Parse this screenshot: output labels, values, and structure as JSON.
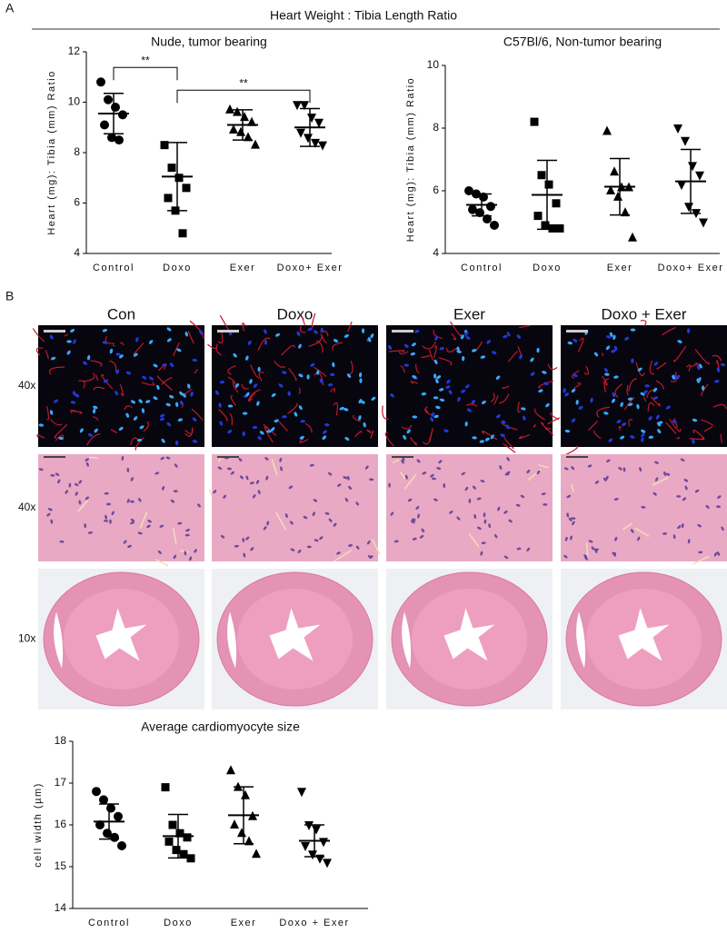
{
  "figure": {
    "panel_labels": [
      "A",
      "B"
    ],
    "header": "Heart Weight : Tibia Length Ratio",
    "image_columns": [
      "Con",
      "Doxo",
      "Exer",
      "Doxo + Exer"
    ],
    "image_rows": [
      "40x",
      "40x",
      "10x"
    ]
  },
  "chart_data": [
    {
      "type": "dot",
      "title": "Nude, tumor bearing",
      "y_label": "Heart (mg): Tibia (mm) Ratio",
      "categories": [
        "Control",
        "Doxo",
        "Exer",
        "Doxo+ Exer"
      ],
      "markers": [
        "circle",
        "square",
        "triangle",
        "triangle-down"
      ],
      "color": "#000000",
      "points": [
        [
          10.8,
          10.1,
          9.8,
          9.5,
          9.1,
          8.6,
          8.5
        ],
        [
          8.3,
          7.4,
          7.0,
          6.6,
          6.2,
          5.7,
          4.8
        ],
        [
          9.7,
          9.6,
          9.4,
          9.2,
          8.9,
          8.8,
          8.6,
          8.3
        ],
        [
          9.9,
          9.9,
          9.4,
          9.2,
          8.8,
          8.6,
          8.4,
          8.3
        ]
      ],
      "means": [
        9.55,
        7.05,
        9.1,
        9.0
      ],
      "sd": [
        0.8,
        1.35,
        0.6,
        0.75
      ],
      "ylim": [
        4,
        12
      ],
      "yticks": [
        4,
        6,
        8,
        10,
        12
      ],
      "annotations": [
        {
          "label": "**",
          "between": [
            "Control",
            "Doxo"
          ]
        },
        {
          "label": "**",
          "between": [
            "Doxo",
            "Doxo+ Exer"
          ]
        }
      ]
    },
    {
      "type": "dot",
      "title": "C57Bl/6, Non-tumor bearing",
      "y_label": "Heart (mg): Tibia (mm) Ratio",
      "categories": [
        "Control",
        "Doxo",
        "Exer",
        "Doxo+ Exer"
      ],
      "markers": [
        "circle",
        "square",
        "triangle",
        "triangle-down"
      ],
      "color": "#000000",
      "points": [
        [
          6.0,
          5.9,
          5.8,
          5.5,
          5.4,
          5.3,
          5.1,
          4.9
        ],
        [
          8.2,
          6.5,
          6.2,
          5.6,
          5.2,
          4.9,
          4.8,
          4.8
        ],
        [
          7.9,
          6.6,
          6.1,
          6.1,
          6.0,
          5.8,
          5.3,
          4.5
        ],
        [
          8.0,
          7.6,
          6.8,
          6.5,
          6.2,
          5.5,
          5.3,
          5.0
        ]
      ],
      "means": [
        5.55,
        5.87,
        6.13,
        6.3
      ],
      "sd": [
        0.35,
        1.1,
        0.9,
        1.02
      ],
      "ylim": [
        4,
        10
      ],
      "yticks": [
        4,
        6,
        8,
        10
      ],
      "annotations": []
    },
    {
      "type": "dot",
      "title": "Average cardiomyocyte size",
      "y_label": "cell width (µm)",
      "categories": [
        "Control",
        "Doxo",
        "Exer",
        "Doxo + Exer"
      ],
      "markers": [
        "circle",
        "square",
        "triangle",
        "triangle-down"
      ],
      "color": "#000000",
      "points": [
        [
          16.8,
          16.6,
          16.4,
          16.2,
          16.0,
          15.8,
          15.7,
          15.5
        ],
        [
          16.9,
          16.0,
          15.8,
          15.7,
          15.6,
          15.4,
          15.3,
          15.2
        ],
        [
          17.3,
          16.9,
          16.7,
          16.2,
          16.0,
          15.8,
          15.6,
          15.3
        ],
        [
          16.8,
          16.0,
          15.9,
          15.6,
          15.5,
          15.3,
          15.2,
          15.1
        ]
      ],
      "means": [
        16.08,
        15.73,
        16.23,
        15.62
      ],
      "sd": [
        0.42,
        0.52,
        0.68,
        0.38
      ],
      "ylim": [
        14,
        18
      ],
      "yticks": [
        14,
        15,
        16,
        17,
        18
      ],
      "annotations": []
    }
  ]
}
